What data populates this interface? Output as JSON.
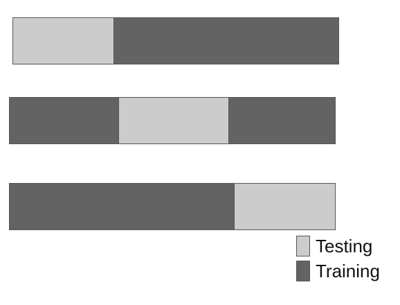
{
  "colors": {
    "testing": "#cccccc",
    "training": "#636363",
    "border": "#555555"
  },
  "folds": [
    {
      "segments": [
        {
          "role": "testing",
          "fraction": 0.31
        },
        {
          "role": "training",
          "fraction": 0.69
        }
      ]
    },
    {
      "segments": [
        {
          "role": "training",
          "fraction": 0.335
        },
        {
          "role": "testing",
          "fraction": 0.34
        },
        {
          "role": "training",
          "fraction": 0.325
        }
      ]
    },
    {
      "segments": [
        {
          "role": "training",
          "fraction": 0.69
        },
        {
          "role": "testing",
          "fraction": 0.31
        }
      ]
    }
  ],
  "legend": {
    "items": [
      {
        "role": "testing",
        "label": "Testing"
      },
      {
        "role": "training",
        "label": "Training"
      }
    ]
  }
}
